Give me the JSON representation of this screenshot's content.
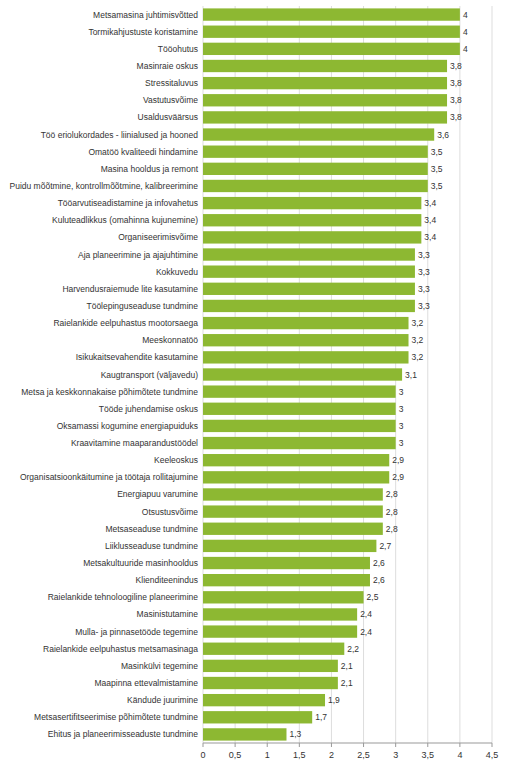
{
  "chart_data": {
    "type": "bar",
    "orientation": "horizontal",
    "categories": [
      "Metsamasina juhtimisvõtted",
      "Tormikahjustuste koristamine",
      "Tööohutus",
      "Masinraie oskus",
      "Stressitaluvus",
      "Vastutusvõime",
      "Usaldusväärsus",
      "Töö eriolukordades - liinialused ja hooned",
      "Omatöö kvaliteedi hindamine",
      "Masina hooldus ja remont",
      "Puidu mõõtmine, kontrollmõõtmine, kalibreerimine",
      "Tööarvutiseadistamine ja infovahetus",
      "Kuluteadlikkus (omahinna kujunemine)",
      "Organiseerimisvõime",
      "Aja planeerimine ja ajajuhtimine",
      "Kokkuvedu",
      "Harvendusraiemude lite kasutamine",
      "Töölepinguseaduse tundmine",
      "Raielankide eelpuhastus mootorsaega",
      "Meeskonnatöö",
      "Isikukaitsevahendite kasutamine",
      "Kaugtransport (väljavedu)",
      "Metsa ja keskkonnakaise põhimõtete tundmine",
      "Tööde juhendamise oskus",
      "Oksamassi kogumine energiapuiduks",
      "Kraavitamine maaparandustöödel",
      "Keeleoskus",
      "Organisatsioonkäitumine ja töötaja rollitajumine",
      "Energiapuu varumine",
      "Otsustusvõime",
      "Metsaseaduse tundmine",
      "Liiklusseaduse tundmine",
      "Metsakultuuride masinhooldus",
      "Klienditeenindus",
      "Raielankide tehnoloogiline planeerimine",
      "Masinistutamine",
      "Mulla- ja pinnasetööde tegemine",
      "Raielankide eelpuhastus metsamasinaga",
      "Masinkülvi tegemine",
      "Maapinna ettevalmistamine",
      "Kändude juurimine",
      "Metsasertifitseerimise põhimõtete tundmine",
      "Ehitus ja planeerimisseaduste tundmine"
    ],
    "values": [
      4,
      4,
      4,
      3.8,
      3.8,
      3.8,
      3.8,
      3.6,
      3.5,
      3.5,
      3.5,
      3.4,
      3.4,
      3.4,
      3.3,
      3.3,
      3.3,
      3.3,
      3.2,
      3.2,
      3.2,
      3.1,
      3,
      3,
      3,
      3,
      2.9,
      2.9,
      2.8,
      2.8,
      2.8,
      2.7,
      2.6,
      2.6,
      2.5,
      2.4,
      2.4,
      2.2,
      2.1,
      2.1,
      1.9,
      1.7,
      1.3
    ],
    "value_labels": [
      "4",
      "4",
      "4",
      "3,8",
      "3,8",
      "3,8",
      "3,8",
      "3,6",
      "3,5",
      "3,5",
      "3,5",
      "3,4",
      "3,4",
      "3,4",
      "3,3",
      "3,3",
      "3,3",
      "3,3",
      "3,2",
      "3,2",
      "3,2",
      "3,1",
      "3",
      "3",
      "3",
      "3",
      "2,9",
      "2,9",
      "2,8",
      "2,8",
      "2,8",
      "2,7",
      "2,6",
      "2,6",
      "2,5",
      "2,4",
      "2,4",
      "2,2",
      "2,1",
      "2,1",
      "1,9",
      "1,7",
      "1,3"
    ],
    "color": "#8db832",
    "xlim": [
      0,
      4.5
    ],
    "xticks": [
      0,
      {
        "value": 0.5,
        "label": "0,5"
      },
      1,
      {
        "value": 1.5,
        "label": "1,5"
      },
      2,
      {
        "value": 2.5,
        "label": "2,5"
      },
      3,
      {
        "value": 3.5,
        "label": "3,5"
      },
      4,
      {
        "value": 4.5,
        "label": "4,5"
      }
    ],
    "grid": true,
    "data_labels": true
  }
}
